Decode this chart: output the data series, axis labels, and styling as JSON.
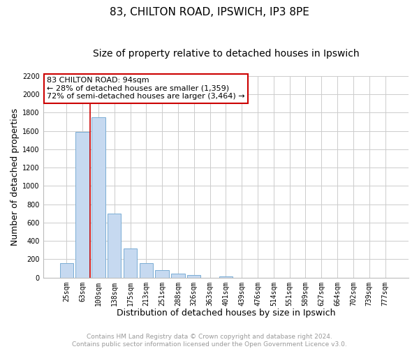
{
  "title": "83, CHILTON ROAD, IPSWICH, IP3 8PE",
  "subtitle": "Size of property relative to detached houses in Ipswich",
  "xlabel": "Distribution of detached houses by size in Ipswich",
  "ylabel": "Number of detached properties",
  "bar_labels": [
    "25sqm",
    "63sqm",
    "100sqm",
    "138sqm",
    "175sqm",
    "213sqm",
    "251sqm",
    "288sqm",
    "326sqm",
    "363sqm",
    "401sqm",
    "439sqm",
    "476sqm",
    "514sqm",
    "551sqm",
    "589sqm",
    "627sqm",
    "664sqm",
    "702sqm",
    "739sqm",
    "777sqm"
  ],
  "bar_values": [
    160,
    1590,
    1750,
    700,
    315,
    155,
    80,
    45,
    25,
    0,
    15,
    0,
    0,
    0,
    0,
    0,
    0,
    0,
    0,
    0,
    0
  ],
  "bar_color": "#c6d9f0",
  "bar_edge_color": "#7aadd4",
  "highlight_line_color": "#cc0000",
  "annotation_text": "83 CHILTON ROAD: 94sqm\n← 28% of detached houses are smaller (1,359)\n72% of semi-detached houses are larger (3,464) →",
  "annotation_box_color": "#ffffff",
  "annotation_box_edge_color": "#cc0000",
  "ylim": [
    0,
    2200
  ],
  "yticks": [
    0,
    200,
    400,
    600,
    800,
    1000,
    1200,
    1400,
    1600,
    1800,
    2000,
    2200
  ],
  "grid_color": "#cccccc",
  "footer_line1": "Contains HM Land Registry data © Crown copyright and database right 2024.",
  "footer_line2": "Contains public sector information licensed under the Open Government Licence v3.0.",
  "footer_color": "#999999",
  "bg_color": "#ffffff",
  "title_fontsize": 11,
  "subtitle_fontsize": 10,
  "axis_label_fontsize": 9,
  "tick_fontsize": 7,
  "annotation_fontsize": 8,
  "footer_fontsize": 6.5
}
